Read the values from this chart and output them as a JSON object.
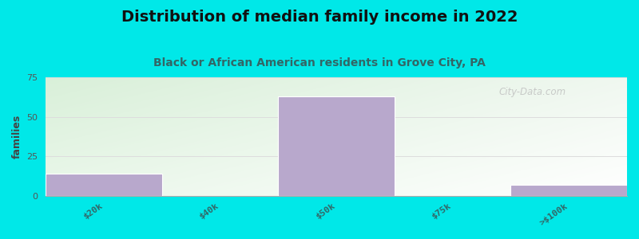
{
  "title": "Distribution of median family income in 2022",
  "subtitle": "Black or African American residents in Grove City, PA",
  "categories": [
    "$20k",
    "$40k",
    "$50k",
    "$75k",
    ">$100k"
  ],
  "values": [
    14,
    0,
    63,
    0,
    7
  ],
  "bar_color": "#b8a8cc",
  "bar_edge_color": "#c8b8dc",
  "ylabel": "families",
  "ylim": [
    0,
    75
  ],
  "yticks": [
    0,
    25,
    50,
    75
  ],
  "background_outer": "#00e8e8",
  "title_fontsize": 14,
  "subtitle_fontsize": 10,
  "ylabel_fontsize": 9,
  "tick_fontsize": 8,
  "watermark": "City-Data.com",
  "grid_color": "#dddddd",
  "bar_width": 1.0
}
